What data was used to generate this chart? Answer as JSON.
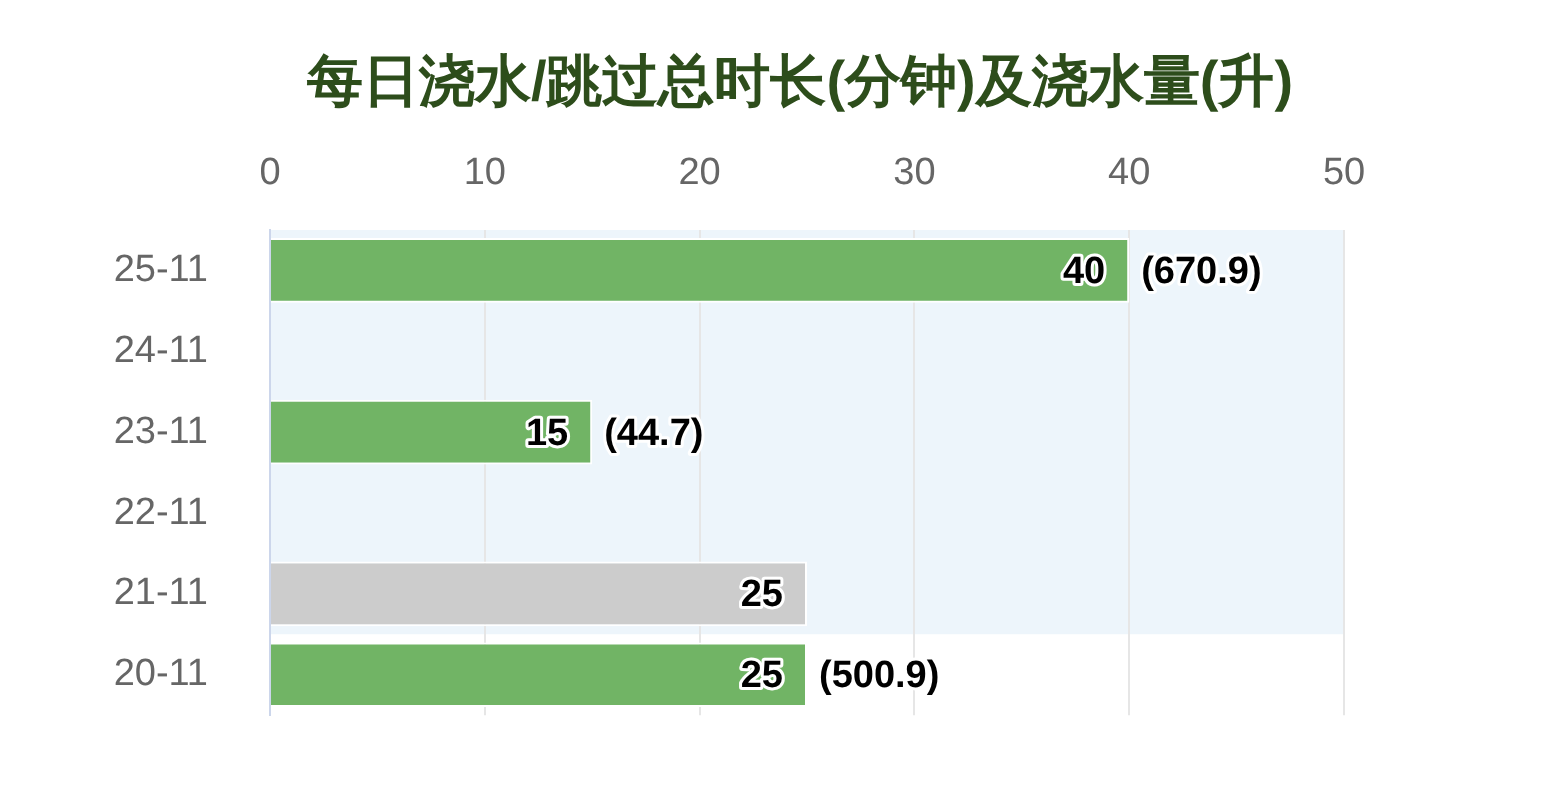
{
  "chart_data": {
    "type": "bar",
    "orientation": "horizontal",
    "title": "每日浇水/跳过总时长(分钟)及浇水量(升)",
    "categories": [
      "25-11",
      "24-11",
      "23-11",
      "22-11",
      "21-11",
      "20-11"
    ],
    "values": [
      40,
      null,
      15,
      null,
      25,
      25
    ],
    "colors": [
      "#71b465",
      "#71b465",
      "#71b465",
      "#71b465",
      "#cccccc",
      "#71b465"
    ],
    "xlim": [
      0,
      50
    ],
    "xticks": [
      0,
      10,
      20,
      30,
      40,
      50
    ],
    "grid": "x",
    "data_labels": true,
    "bands": [
      {
        "axis": "y",
        "from": "25-11",
        "to": "21-11",
        "color": "#edf5fb"
      }
    ],
    "annotations": [
      {
        "text": "(670.9)",
        "x": 40,
        "y": "25-11"
      },
      {
        "text": "(44.7)",
        "x": 15,
        "y": "23-11"
      },
      {
        "text": "(500.9)",
        "x": 25,
        "y": "20-11"
      }
    ]
  }
}
